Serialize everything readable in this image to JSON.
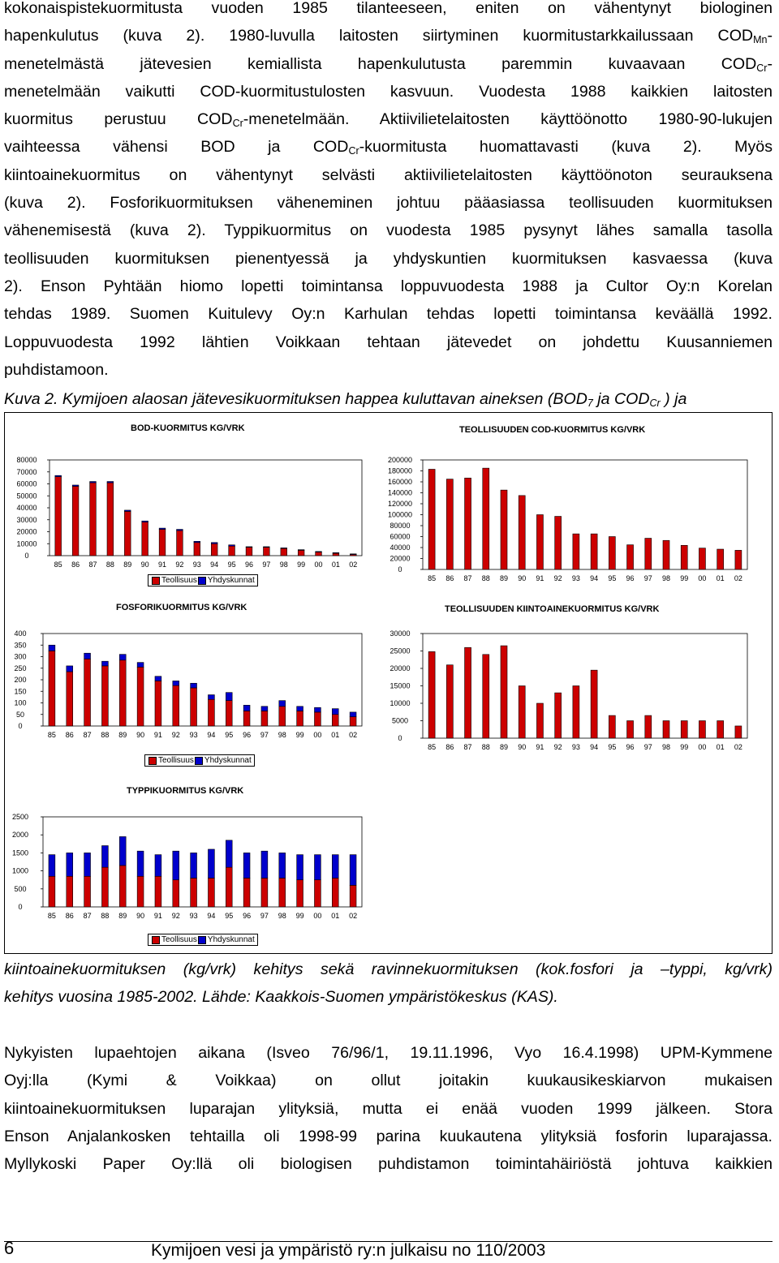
{
  "paragraph1": {
    "lines": [
      [
        "kokonaispistekuormitusta vuoden 1985 tilanteeseen, eniten on vähentynyt biologinen"
      ],
      [
        "hapenkulutus (kuva 2). 1980-luvulla laitosten siirtyminen kuormitustarkkailussaan COD",
        {
          "sub": "Mn"
        },
        "-"
      ],
      [
        "menetelmästä jätevesien kemiallista hapenkulutusta paremmin kuvaavaan COD",
        {
          "sub": "Cr"
        },
        "-"
      ],
      [
        "menetelmään vaikutti COD-kuormitustulosten kasvuun. Vuodesta 1988 kaikkien laitosten"
      ],
      [
        "kuormitus perustuu COD",
        {
          "sub": "Cr"
        },
        "-menetelmään. Aktiivilietelaitosten käyttöönotto 1980-90-lukujen"
      ],
      [
        "vaihteessa vähensi BOD ja COD",
        {
          "sub": "Cr"
        },
        "-kuormitusta huomattavasti (kuva 2). Myös"
      ],
      [
        "kiintoainekuormitus on vähentynyt selvästi aktiivilietelaitosten käyttöönoton seurauksena"
      ],
      [
        "(kuva 2). Fosforikuormituksen väheneminen johtuu pääasiassa teollisuuden kuormituksen"
      ],
      [
        "vähenemisestä (kuva 2). Typpikuormitus on vuodesta 1985 pysynyt lähes samalla tasolla"
      ],
      [
        "teollisuuden kuormituksen pienentyessä ja yhdyskuntien kuormituksen kasvaessa (kuva"
      ],
      [
        "2). Enson Pyhtään hiomo lopetti toimintansa loppuvuodesta 1988 ja Cultor Oy:n Korelan"
      ],
      [
        "tehdas 1989. Suomen Kuitulevy Oy:n Karhulan tehdas lopetti toimintansa keväällä 1992."
      ],
      [
        "Loppuvuodesta 1992 lähtien Voikkaan tehtaan jätevedet on johdettu Kuusanniemen"
      ],
      [
        "puhdistamoon."
      ]
    ]
  },
  "caption": {
    "line1_parts": [
      "Kuva 2. Kymijoen alaosan  jätevesikuormituksen happea kuluttavan aineksen (BOD",
      {
        "sub": "7"
      },
      " ja COD",
      {
        "sub": "Cr"
      },
      "  ) ja"
    ],
    "line2": "kiintoainekuormituksen (kg/vrk) kehitys sekä ravinnekuormituksen (kok.fosfori ja  –typpi, kg/vrk)",
    "line3": "kehitys vuosina 1985-2002. Lähde: Kaakkois-Suomen ympäristökeskus (KAS)."
  },
  "legend": {
    "teollisuus": "Teollisuus",
    "yhdyskunnat": "Yhdyskunnat"
  },
  "colors": {
    "teollisuus": "#cc0000",
    "yhdyskunnat": "#0000cc"
  },
  "chart_data": [
    {
      "id": "bod",
      "type": "bar",
      "stacked": true,
      "title": "BOD-KUORMITUS KG/VRK",
      "categories": [
        "85",
        "86",
        "87",
        "88",
        "89",
        "90",
        "91",
        "92",
        "93",
        "94",
        "95",
        "96",
        "97",
        "98",
        "99",
        "00",
        "01",
        "02"
      ],
      "yticks": [
        0,
        10000,
        20000,
        30000,
        40000,
        50000,
        60000,
        70000,
        80000
      ],
      "ylim": [
        0,
        80000
      ],
      "series": [
        {
          "name": "Teollisuus",
          "values": [
            66000,
            58000,
            61000,
            61000,
            37000,
            28000,
            22000,
            21000,
            11000,
            10000,
            8000,
            7000,
            7000,
            6000,
            4500,
            3000,
            2000,
            1000
          ]
        },
        {
          "name": "Yhdyskunnat",
          "values": [
            1000,
            1000,
            1000,
            1000,
            1000,
            1000,
            1000,
            1000,
            1000,
            1000,
            1000,
            500,
            500,
            500,
            500,
            500,
            500,
            500
          ]
        }
      ],
      "legend": true
    },
    {
      "id": "cod",
      "type": "bar",
      "title": "TEOLLISUUDEN COD-KUORMITUS KG/VRK",
      "categories": [
        "85",
        "86",
        "87",
        "88",
        "89",
        "90",
        "91",
        "92",
        "93",
        "94",
        "95",
        "96",
        "97",
        "98",
        "99",
        "00",
        "01",
        "02"
      ],
      "yticks": [
        0,
        20000,
        40000,
        60000,
        80000,
        100000,
        120000,
        140000,
        160000,
        180000,
        200000
      ],
      "ylim": [
        0,
        200000
      ],
      "series": [
        {
          "name": "",
          "values": [
            183000,
            165000,
            167000,
            185000,
            145000,
            135000,
            100000,
            97000,
            65000,
            65000,
            60000,
            45000,
            57000,
            53000,
            44000,
            39000,
            37000,
            35000
          ]
        }
      ],
      "legend": false
    },
    {
      "id": "fosfori",
      "type": "bar",
      "stacked": true,
      "title": "FOSFORIKUORMITUS KG/VRK",
      "categories": [
        "85",
        "86",
        "87",
        "88",
        "89",
        "90",
        "91",
        "92",
        "93",
        "94",
        "95",
        "96",
        "97",
        "98",
        "99",
        "00",
        "01",
        "02"
      ],
      "yticks": [
        0,
        50,
        100,
        150,
        200,
        250,
        300,
        350,
        400
      ],
      "ylim": [
        0,
        400
      ],
      "series": [
        {
          "name": "Teollisuus",
          "values": [
            325,
            235,
            290,
            260,
            285,
            255,
            195,
            175,
            165,
            115,
            110,
            65,
            65,
            85,
            65,
            60,
            50,
            40
          ]
        },
        {
          "name": "Yhdyskunnat",
          "values": [
            25,
            25,
            25,
            20,
            25,
            20,
            20,
            20,
            20,
            20,
            35,
            25,
            20,
            25,
            20,
            20,
            25,
            20
          ]
        }
      ],
      "legend": true
    },
    {
      "id": "kiintoaine",
      "type": "bar",
      "title": "TEOLLISUUDEN KIINTOAINEKUORMITUS KG/VRK",
      "categories": [
        "85",
        "86",
        "87",
        "88",
        "89",
        "90",
        "91",
        "92",
        "93",
        "94",
        "95",
        "96",
        "97",
        "98",
        "99",
        "00",
        "01",
        "02"
      ],
      "yticks": [
        0,
        5000,
        10000,
        15000,
        20000,
        25000,
        30000
      ],
      "ylim": [
        0,
        30000
      ],
      "series": [
        {
          "name": "",
          "values": [
            24800,
            21000,
            26000,
            24000,
            26500,
            15000,
            10000,
            13000,
            15000,
            19500,
            6500,
            5000,
            6500,
            5000,
            5000,
            5000,
            5000,
            3500
          ]
        }
      ],
      "legend": false
    },
    {
      "id": "typpi",
      "type": "bar",
      "stacked": true,
      "title": "TYPPIKUORMITUS KG/VRK",
      "categories": [
        "85",
        "86",
        "87",
        "88",
        "89",
        "90",
        "91",
        "92",
        "93",
        "94",
        "95",
        "96",
        "97",
        "98",
        "99",
        "00",
        "01",
        "02"
      ],
      "yticks": [
        0,
        500,
        1000,
        1500,
        2000,
        2500
      ],
      "ylim": [
        0,
        2500
      ],
      "series": [
        {
          "name": "Teollisuus",
          "values": [
            850,
            850,
            850,
            1100,
            1150,
            850,
            850,
            750,
            800,
            800,
            1100,
            800,
            800,
            800,
            750,
            750,
            800,
            600
          ]
        },
        {
          "name": "Yhdyskunnat",
          "values": [
            600,
            650,
            650,
            600,
            800,
            700,
            600,
            800,
            700,
            800,
            750,
            700,
            750,
            700,
            700,
            700,
            650,
            850
          ]
        }
      ],
      "legend": true
    }
  ],
  "paragraph2": {
    "lines": [
      [
        "Nykyisten lupaehtojen aikana (Isveo 76/96/1, 19.11.1996, Vyo 16.4.1998) UPM-Kymmene"
      ],
      [
        "Oyj:lla (Kymi & Voikkaa) on ollut joitakin kuukausikeskiarvon mukaisen"
      ],
      [
        "kiintoainekuormituksen luparajan ylityksiä, mutta ei enää vuoden 1999 jälkeen. Stora"
      ],
      [
        "Enson Anjalankosken tehtailla oli 1998-99 parina kuukautena ylityksiä fosforin luparajassa."
      ],
      [
        "Myllykoski Paper Oy:llä oli biologisen puhdistamon toimintahäiriöstä johtuva kaikkien"
      ]
    ]
  },
  "footer": {
    "page_number": "6",
    "publication": "Kymijoen vesi ja ympäristö ry:n julkaisu no 110/2003"
  }
}
